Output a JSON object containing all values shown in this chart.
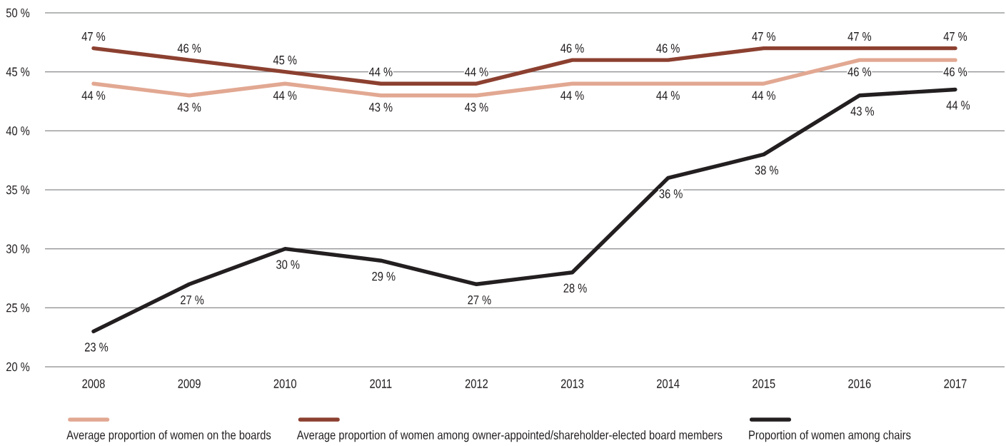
{
  "chart_data": {
    "type": "line",
    "categories": [
      "2008",
      "2009",
      "2010",
      "2011",
      "2012",
      "2013",
      "2014",
      "2015",
      "2016",
      "2017"
    ],
    "series": [
      {
        "name": "Average proportion of women on the boards",
        "color": "#e2a892",
        "values": [
          44,
          43,
          44,
          43,
          43,
          44,
          44,
          44,
          46,
          46
        ],
        "value_labels": [
          "44 %",
          "43 %",
          "44 %",
          "43 %",
          "43 %",
          "44 %",
          "44 %",
          "44 %",
          "46 %",
          "46 %"
        ]
      },
      {
        "name": "Average proportion of women among owner-appointed/shareholder-elected board members",
        "color": "#8c4030",
        "values": [
          47,
          46,
          45,
          44,
          44,
          46,
          46,
          47,
          47,
          47
        ],
        "value_labels": [
          "47 %",
          "46 %",
          "45 %",
          "44 %",
          "44 %",
          "46 %",
          "46 %",
          "47 %",
          "47 %",
          "47 %"
        ]
      },
      {
        "name": "Proportion of women among chairs",
        "color": "#231f20",
        "values": [
          23,
          27,
          30,
          29,
          27,
          28,
          36,
          38,
          43,
          43.5
        ],
        "value_labels": [
          "23 %",
          "27 %",
          "30 %",
          "29 %",
          "27 %",
          "28 %",
          "36 %",
          "38 %",
          "43 %",
          "44 %"
        ]
      }
    ],
    "ylim": [
      20,
      50
    ],
    "yticks": [
      {
        "value": 20,
        "label": "20 %"
      },
      {
        "value": 25,
        "label": "25 %"
      },
      {
        "value": 30,
        "label": "30 %"
      },
      {
        "value": 35,
        "label": "35 %"
      },
      {
        "value": 40,
        "label": "40 %"
      },
      {
        "value": 45,
        "label": "45 %"
      },
      {
        "value": 50,
        "label": "50 %"
      }
    ],
    "grid": "y",
    "legend": "bottom",
    "marker": "none",
    "line_style": "solid"
  }
}
